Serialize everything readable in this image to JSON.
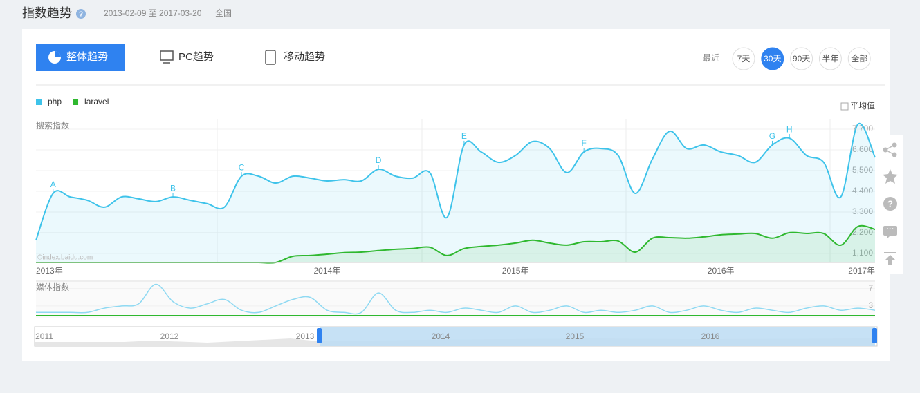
{
  "header": {
    "title": "指数趋势",
    "date_range": "2013-02-09 至 2017-03-20",
    "region": "全国"
  },
  "tabs": [
    "整体趋势",
    "PC趋势",
    "移动趋势"
  ],
  "range_label": "最近",
  "ranges": [
    "7天",
    "30天",
    "90天",
    "半年",
    "全部"
  ],
  "active_range": "30天",
  "average_label": "平均值",
  "chart_data": [
    {
      "type": "line",
      "y_label": "搜索指数",
      "watermark": "©index.baidu.com",
      "categories": [
        "2013年",
        null,
        null,
        null,
        null,
        null,
        null,
        null,
        null,
        null,
        null,
        null,
        null,
        null,
        null,
        null,
        null,
        "2014年",
        null,
        null,
        null,
        null,
        null,
        null,
        null,
        null,
        null,
        null,
        "2015年",
        null,
        null,
        null,
        null,
        null,
        null,
        null,
        null,
        null,
        null,
        null,
        "2016年",
        null,
        null,
        null,
        null,
        null,
        null,
        null,
        null,
        "2017年"
      ],
      "series": [
        {
          "name": "php",
          "color": "#3ec3ea",
          "values": [
            1800,
            4290,
            4100,
            3920,
            3560,
            4100,
            4000,
            3850,
            4100,
            3920,
            3740,
            3560,
            5200,
            5200,
            4840,
            5200,
            5100,
            4950,
            5020,
            4950,
            5570,
            5200,
            5100,
            5390,
            3010,
            6860,
            6490,
            5940,
            6300,
            7040,
            6670,
            5390,
            6490,
            6670,
            6300,
            4290,
            6120,
            7590,
            6670,
            6860,
            6490,
            6300,
            5940,
            6860,
            7220,
            6300,
            5940,
            4100,
            7960,
            6200
          ],
          "marker_labels": [
            null,
            "A",
            null,
            null,
            null,
            null,
            null,
            null,
            "B",
            null,
            null,
            null,
            "C",
            null,
            null,
            null,
            null,
            null,
            null,
            null,
            "D",
            null,
            null,
            null,
            null,
            "E",
            null,
            null,
            null,
            null,
            null,
            null,
            "F",
            null,
            null,
            null,
            null,
            null,
            null,
            null,
            null,
            null,
            null,
            "G",
            "H",
            null,
            null,
            null,
            null,
            null
          ]
        },
        {
          "name": "laravel",
          "color": "#2fb82f",
          "values": [
            620,
            620,
            620,
            620,
            620,
            620,
            620,
            620,
            620,
            620,
            620,
            620,
            620,
            620,
            620,
            950,
            990,
            1060,
            1140,
            1170,
            1250,
            1320,
            1360,
            1430,
            990,
            1360,
            1470,
            1540,
            1650,
            1800,
            1650,
            1540,
            1720,
            1720,
            1760,
            1170,
            1910,
            1940,
            1910,
            1980,
            2090,
            2130,
            2160,
            1910,
            2200,
            2160,
            2160,
            1540,
            2530,
            2380
          ]
        }
      ],
      "ylim": [
        620,
        8250
      ],
      "yticks": [
        {
          "value": 1100,
          "label": "1,100"
        },
        {
          "value": 2200,
          "label": "2,200"
        },
        {
          "value": 3300,
          "label": "3,300"
        },
        {
          "value": 4400,
          "label": "4,400"
        },
        {
          "value": 5500,
          "label": "5,500"
        },
        {
          "value": 6600,
          "label": "6,600"
        },
        {
          "value": 7700,
          "label": "7,700"
        }
      ],
      "grid": true
    },
    {
      "type": "line",
      "y_label": "媒体指数",
      "series": [
        {
          "color": "#8fd9f2",
          "values": [
            1.5,
            1.5,
            1.5,
            1.5,
            2.5,
            3,
            3.5,
            8,
            4,
            2.5,
            3.5,
            4.5,
            2,
            1.5,
            3,
            4.5,
            5,
            2,
            1.5,
            1.5,
            6,
            2,
            1.5,
            2,
            1.5,
            2.5,
            2,
            1.5,
            3,
            1.5,
            2,
            3,
            1.5,
            2,
            1.5,
            2,
            3,
            1.5,
            2,
            3,
            2,
            1.5,
            2.5,
            2,
            1.5,
            2.5,
            3,
            2,
            2.5,
            2
          ]
        },
        {
          "color": "#2fb82f",
          "values": [
            0.8,
            0.8,
            0.8,
            0.8,
            0.8,
            0.8,
            0.8,
            0.8,
            0.8,
            0.8,
            0.8,
            0.8,
            0.8,
            0.8,
            0.8,
            0.8,
            0.8,
            0.8,
            0.8,
            0.8,
            0.8,
            0.8,
            0.8,
            0.8,
            0.8,
            0.8,
            0.8,
            0.8,
            0.8,
            0.8,
            0.8,
            0.8,
            0.8,
            0.8,
            0.8,
            0.8,
            0.8,
            0.8,
            0.8,
            0.8,
            0.8,
            0.8,
            0.8,
            0.8,
            0.8,
            0.8,
            0.8,
            0.8,
            0.8,
            0.8
          ]
        }
      ],
      "ylim": [
        0.6,
        8.4
      ],
      "yticks": [
        3,
        7
      ],
      "grid": true
    }
  ],
  "navigator": {
    "labels": [
      "2011",
      "2012",
      "2013",
      "2014",
      "2015",
      "2016"
    ]
  }
}
